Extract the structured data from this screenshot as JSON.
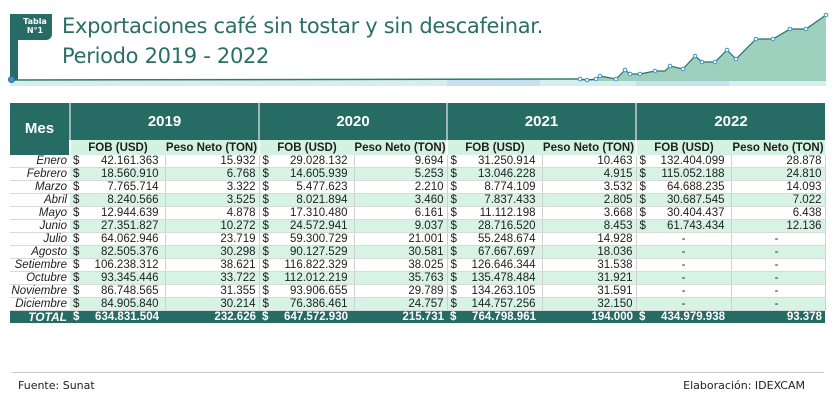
{
  "header": {
    "tag_line1": "Tabla",
    "tag_line2": "N°1",
    "title_line1": "Exportaciones café sin tostar y sin descafeinar.",
    "title_line2": "Periodo 2019 - 2022",
    "accent_color": "#276b65"
  },
  "table": {
    "mes_header": "Mes",
    "years": [
      "2019",
      "2020",
      "2021",
      "2022"
    ],
    "sub_headers": {
      "fob": "FOB (USD)",
      "peso": "Peso Neto (TON)"
    },
    "currency_symbol": "$",
    "rows": [
      {
        "mes": "Enero",
        "values": [
          [
            "42.161.363",
            "15.932"
          ],
          [
            "29.028.132",
            "9.694"
          ],
          [
            "31.250.914",
            "10.463"
          ],
          [
            "132.404.099",
            "28.878"
          ]
        ]
      },
      {
        "mes": "Febrero",
        "values": [
          [
            "18.560.910",
            "6.768"
          ],
          [
            "14.605.939",
            "5.253"
          ],
          [
            "13.046.228",
            "4.915"
          ],
          [
            "115.052.188",
            "24.810"
          ]
        ]
      },
      {
        "mes": "Marzo",
        "values": [
          [
            "7.765.714",
            "3.322"
          ],
          [
            "5.477.623",
            "2.210"
          ],
          [
            "8.774.109",
            "3.532"
          ],
          [
            "64.688.235",
            "14.093"
          ]
        ]
      },
      {
        "mes": "Abril",
        "values": [
          [
            "8.240.566",
            "3.525"
          ],
          [
            "8.021.894",
            "3.460"
          ],
          [
            "7.837.433",
            "2.805"
          ],
          [
            "30.687.545",
            "7.022"
          ]
        ]
      },
      {
        "mes": "Mayo",
        "values": [
          [
            "12.944.639",
            "4.878"
          ],
          [
            "17.310.480",
            "6.161"
          ],
          [
            "11.112.198",
            "3.668"
          ],
          [
            "30.404.437",
            "6.438"
          ]
        ]
      },
      {
        "mes": "Junio",
        "values": [
          [
            "27.351.827",
            "10.272"
          ],
          [
            "24.572.941",
            "9.037"
          ],
          [
            "28.716.520",
            "8.453"
          ],
          [
            "61.743.434",
            "12.136"
          ]
        ]
      },
      {
        "mes": "Julio",
        "values": [
          [
            "64.062.946",
            "23.719"
          ],
          [
            "59.300.729",
            "21.001"
          ],
          [
            "55.248.674",
            "14.928"
          ],
          [
            "-",
            "-"
          ]
        ]
      },
      {
        "mes": "Agosto",
        "values": [
          [
            "82.505.376",
            "30.298"
          ],
          [
            "90.127.529",
            "30.581"
          ],
          [
            "67.667.697",
            "18.036"
          ],
          [
            "-",
            "-"
          ]
        ]
      },
      {
        "mes": "Setiembre",
        "values": [
          [
            "106.238.312",
            "38.621"
          ],
          [
            "116.822.329",
            "38.025"
          ],
          [
            "126.646.344",
            "31.538"
          ],
          [
            "-",
            "-"
          ]
        ]
      },
      {
        "mes": "Octubre",
        "values": [
          [
            "93.345.446",
            "33.722"
          ],
          [
            "112.012.219",
            "35.763"
          ],
          [
            "135.478.484",
            "31.921"
          ],
          [
            "-",
            "-"
          ]
        ]
      },
      {
        "mes": "Noviembre",
        "values": [
          [
            "86.748.565",
            "31.355"
          ],
          [
            "93.906.655",
            "29.789"
          ],
          [
            "134.263.105",
            "31.591"
          ],
          [
            "-",
            "-"
          ]
        ]
      },
      {
        "mes": "Diciembre",
        "values": [
          [
            "84.905.840",
            "30.214"
          ],
          [
            "76.386.461",
            "24.757"
          ],
          [
            "144.757.256",
            "32.150"
          ],
          [
            "-",
            "-"
          ]
        ]
      }
    ],
    "total": {
      "label": "TOTAL",
      "values": [
        [
          "634.831.504",
          "232.626"
        ],
        [
          "647.572.930",
          "215.731"
        ],
        [
          "764.798.961",
          "194.000"
        ],
        [
          "434.979.938",
          "93.378"
        ]
      ]
    }
  },
  "footer": {
    "source": "Fuente:  Sunat",
    "credit": "Elaboración: IDEXCAM"
  }
}
